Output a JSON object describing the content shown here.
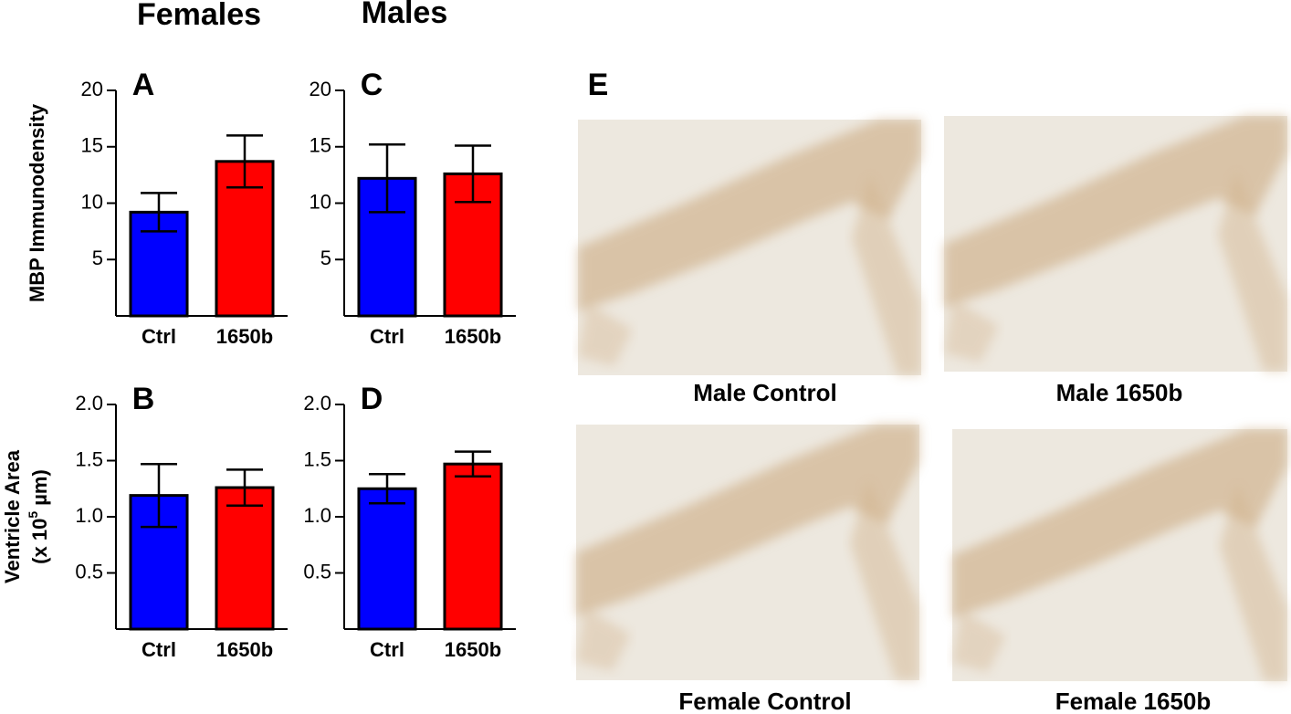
{
  "column_titles": [
    "Females",
    "Males"
  ],
  "chart_data": [
    {
      "type": "bar",
      "label": "A",
      "y_label": [
        "MBP Immunodensity"
      ],
      "categories": [
        "Ctrl",
        "1650b"
      ],
      "values": [
        9.2,
        13.7
      ],
      "errors": [
        1.7,
        2.3
      ],
      "colors": [
        "#0000ff",
        "#ff0000"
      ],
      "ylim": [
        0,
        20
      ],
      "yticks": [
        5,
        10,
        15,
        20
      ]
    },
    {
      "type": "bar",
      "label": "B",
      "y_label": [
        "Ventricle Area",
        "(x 10",
        "5",
        " µm)"
      ],
      "categories": [
        "Ctrl",
        "1650b"
      ],
      "values": [
        1.19,
        1.26
      ],
      "errors": [
        0.28,
        0.16
      ],
      "colors": [
        "#0000ff",
        "#ff0000"
      ],
      "ylim": [
        0,
        2
      ],
      "yticks": [
        0.5,
        {
          "value": 1,
          "label": "1.0"
        },
        1.5,
        {
          "value": 2,
          "label": "2.0"
        }
      ]
    },
    {
      "type": "bar",
      "label": "C",
      "categories": [
        "Ctrl",
        "1650b"
      ],
      "values": [
        12.2,
        12.6
      ],
      "errors": [
        3.0,
        2.5
      ],
      "colors": [
        "#0000ff",
        "#ff0000"
      ],
      "ylim": [
        0,
        20
      ],
      "yticks": [
        5,
        10,
        15,
        20
      ]
    },
    {
      "type": "bar",
      "label": "D",
      "categories": [
        "Ctrl",
        "1650b"
      ],
      "values": [
        1.25,
        1.47
      ],
      "errors": [
        0.13,
        0.11
      ],
      "colors": [
        "#0000ff",
        "#ff0000"
      ],
      "ylim": [
        0,
        2
      ],
      "yticks": [
        0.5,
        {
          "value": 1,
          "label": "1.0"
        },
        1.5,
        {
          "value": 2,
          "label": "2.0"
        }
      ]
    }
  ],
  "panel_e": {
    "label": "E",
    "captions": [
      "Male Control",
      "Male 1650b",
      "Female Control",
      "Female 1650b"
    ]
  }
}
